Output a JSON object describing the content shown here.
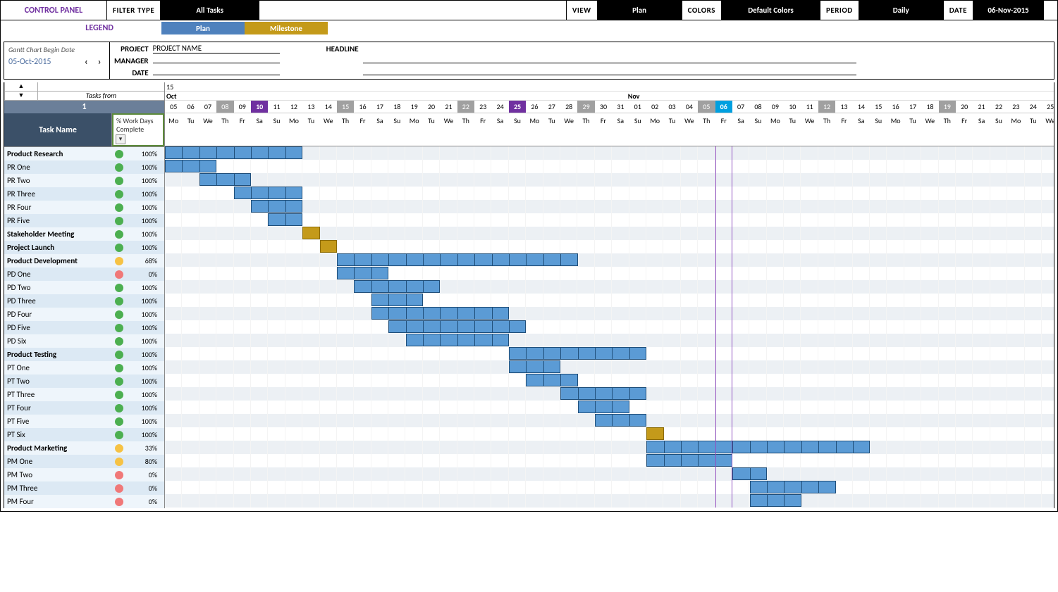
{
  "control_panel": {
    "title": "CONTROL PANEL",
    "filter_type_label": "FILTER TYPE",
    "filter_type_value": "All Tasks",
    "view_label": "VIEW",
    "view_value": "Plan",
    "colors_label": "COLORS",
    "colors_value": "Default Colors",
    "period_label": "PERIOD",
    "period_value": "Daily",
    "date_label": "DATE",
    "date_value": "06-Nov-2015"
  },
  "legend": {
    "label": "LEGEND",
    "plan": "Plan",
    "milestone": "Milestone",
    "plan_color": "#4f81bd",
    "milestone_color": "#c49a1a"
  },
  "meta": {
    "begin_date_label": "Gantt Chart Begin Date",
    "begin_date": "05-Oct-2015",
    "project_label": "PROJECT",
    "project_value": "PROJECT NAME",
    "manager_label": "MANAGER",
    "manager_value": "",
    "date_label": "DATE",
    "date_value": "",
    "headline_label": "HEADLINE",
    "headline_value": ""
  },
  "task_head": {
    "tasks_from": "Tasks from",
    "index": "1",
    "task_name": "Task Name",
    "pct_label": "% Work Days Complete"
  },
  "timeline": {
    "cell_width": 24.4,
    "year": "15",
    "months": [
      {
        "label": "Oct",
        "span": 27
      },
      {
        "label": "Nov",
        "span": 25
      }
    ],
    "today_col": 32,
    "days": [
      {
        "d": "05",
        "w": "Mo"
      },
      {
        "d": "06",
        "w": "Tu"
      },
      {
        "d": "07",
        "w": "We"
      },
      {
        "d": "08",
        "w": "Th",
        "shade": true
      },
      {
        "d": "09",
        "w": "Fr"
      },
      {
        "d": "10",
        "w": "Sa",
        "purple": true
      },
      {
        "d": "11",
        "w": "Su"
      },
      {
        "d": "12",
        "w": "Mo"
      },
      {
        "d": "13",
        "w": "Tu"
      },
      {
        "d": "14",
        "w": "We"
      },
      {
        "d": "15",
        "w": "Th",
        "shade": true
      },
      {
        "d": "16",
        "w": "Fr"
      },
      {
        "d": "17",
        "w": "Sa"
      },
      {
        "d": "18",
        "w": "Su"
      },
      {
        "d": "19",
        "w": "Mo"
      },
      {
        "d": "20",
        "w": "Tu"
      },
      {
        "d": "21",
        "w": "We"
      },
      {
        "d": "22",
        "w": "Th",
        "shade": true
      },
      {
        "d": "23",
        "w": "Fr"
      },
      {
        "d": "24",
        "w": "Sa"
      },
      {
        "d": "25",
        "w": "Su",
        "purple": true
      },
      {
        "d": "26",
        "w": "Mo"
      },
      {
        "d": "27",
        "w": "Tu"
      },
      {
        "d": "28",
        "w": "We"
      },
      {
        "d": "29",
        "w": "Th",
        "shade": true
      },
      {
        "d": "30",
        "w": "Fr"
      },
      {
        "d": "31",
        "w": "Sa"
      },
      {
        "d": "01",
        "w": "Su"
      },
      {
        "d": "02",
        "w": "Mo"
      },
      {
        "d": "03",
        "w": "Tu"
      },
      {
        "d": "04",
        "w": "We"
      },
      {
        "d": "05",
        "w": "Th",
        "shade": true
      },
      {
        "d": "06",
        "w": "Fr",
        "cyan": true
      },
      {
        "d": "07",
        "w": "Sa"
      },
      {
        "d": "08",
        "w": "Su"
      },
      {
        "d": "09",
        "w": "Mo"
      },
      {
        "d": "10",
        "w": "Tu"
      },
      {
        "d": "11",
        "w": "We"
      },
      {
        "d": "12",
        "w": "Th",
        "shade": true
      },
      {
        "d": "13",
        "w": "Fr"
      },
      {
        "d": "14",
        "w": "Sa"
      },
      {
        "d": "15",
        "w": "Su"
      },
      {
        "d": "16",
        "w": "Mo"
      },
      {
        "d": "17",
        "w": "Tu"
      },
      {
        "d": "18",
        "w": "We"
      },
      {
        "d": "19",
        "w": "Th",
        "shade": true
      },
      {
        "d": "20",
        "w": "Fr"
      },
      {
        "d": "21",
        "w": "Sa"
      },
      {
        "d": "22",
        "w": "Su"
      },
      {
        "d": "23",
        "w": "Mo"
      },
      {
        "d": "24",
        "w": "Tu"
      },
      {
        "d": "25",
        "w": "We"
      }
    ]
  },
  "tasks": [
    {
      "name": "Product Research",
      "bold": true,
      "status": "green",
      "pct": "100%",
      "bars": [
        {
          "start": 0,
          "len": 8
        }
      ]
    },
    {
      "name": "PR One",
      "status": "green",
      "pct": "100%",
      "bars": [
        {
          "start": 0,
          "len": 3
        }
      ]
    },
    {
      "name": "PR Two",
      "status": "green",
      "pct": "100%",
      "bars": [
        {
          "start": 2,
          "len": 3
        }
      ]
    },
    {
      "name": "PR Three",
      "status": "green",
      "pct": "100%",
      "bars": [
        {
          "start": 4,
          "len": 4
        }
      ]
    },
    {
      "name": "PR Four",
      "status": "green",
      "pct": "100%",
      "bars": [
        {
          "start": 5,
          "len": 3
        }
      ]
    },
    {
      "name": "PR Five",
      "status": "green",
      "pct": "100%",
      "bars": [
        {
          "start": 6,
          "len": 2
        }
      ]
    },
    {
      "name": "Stakeholder Meeting",
      "bold": true,
      "status": "green",
      "pct": "100%",
      "bars": [
        {
          "start": 8,
          "len": 1,
          "milestone": true
        }
      ]
    },
    {
      "name": "Project Launch",
      "bold": true,
      "status": "green",
      "pct": "100%",
      "bars": [
        {
          "start": 9,
          "len": 1,
          "milestone": true
        }
      ]
    },
    {
      "name": "Product Development",
      "bold": true,
      "status": "yellow",
      "pct": "68%",
      "bars": [
        {
          "start": 10,
          "len": 14
        }
      ]
    },
    {
      "name": "PD One",
      "status": "red",
      "pct": "0%",
      "bars": [
        {
          "start": 10,
          "len": 3
        }
      ]
    },
    {
      "name": "PD Two",
      "status": "green",
      "pct": "100%",
      "bars": [
        {
          "start": 11,
          "len": 5
        }
      ]
    },
    {
      "name": "PD Three",
      "status": "green",
      "pct": "100%",
      "bars": [
        {
          "start": 12,
          "len": 3
        }
      ]
    },
    {
      "name": "PD Four",
      "status": "green",
      "pct": "100%",
      "bars": [
        {
          "start": 12,
          "len": 8
        }
      ]
    },
    {
      "name": "PD Five",
      "status": "green",
      "pct": "100%",
      "bars": [
        {
          "start": 13,
          "len": 8
        }
      ]
    },
    {
      "name": "PD Six",
      "status": "green",
      "pct": "100%",
      "bars": [
        {
          "start": 14,
          "len": 6
        }
      ]
    },
    {
      "name": "Product Testing",
      "bold": true,
      "status": "green",
      "pct": "100%",
      "bars": [
        {
          "start": 20,
          "len": 8
        }
      ]
    },
    {
      "name": "PT One",
      "status": "green",
      "pct": "100%",
      "bars": [
        {
          "start": 20,
          "len": 3
        }
      ]
    },
    {
      "name": "PT Two",
      "status": "green",
      "pct": "100%",
      "bars": [
        {
          "start": 21,
          "len": 3
        }
      ]
    },
    {
      "name": "PT Three",
      "status": "green",
      "pct": "100%",
      "bars": [
        {
          "start": 23,
          "len": 5
        }
      ]
    },
    {
      "name": "PT Four",
      "status": "green",
      "pct": "100%",
      "bars": [
        {
          "start": 24,
          "len": 3
        }
      ]
    },
    {
      "name": "PT Five",
      "status": "green",
      "pct": "100%",
      "bars": [
        {
          "start": 25,
          "len": 3
        }
      ]
    },
    {
      "name": "PT Six",
      "status": "green",
      "pct": "100%",
      "bars": [
        {
          "start": 28,
          "len": 1,
          "milestone": true
        }
      ]
    },
    {
      "name": "Product Marketing",
      "bold": true,
      "status": "yellow",
      "pct": "33%",
      "bars": [
        {
          "start": 28,
          "len": 13
        }
      ]
    },
    {
      "name": "PM One",
      "status": "yellow",
      "pct": "80%",
      "bars": [
        {
          "start": 28,
          "len": 5
        }
      ]
    },
    {
      "name": "PM Two",
      "status": "red",
      "pct": "0%",
      "bars": [
        {
          "start": 33,
          "len": 2
        }
      ]
    },
    {
      "name": "PM Three",
      "status": "red",
      "pct": "0%",
      "bars": [
        {
          "start": 34,
          "len": 5
        }
      ]
    },
    {
      "name": "PM Four",
      "status": "red",
      "pct": "0%",
      "bars": [
        {
          "start": 34,
          "len": 3
        }
      ]
    }
  ],
  "colors": {
    "bar": "#5b9bd5",
    "bar_border": "#1f4e79",
    "milestone": "#c49a1a",
    "row_even": "#ecf0f4",
    "row_odd": "#ffffff",
    "task_even": "#dce9f4",
    "task_odd": "#eef5fb",
    "task_header": "#3b5068",
    "index_header": "#6b7f99"
  }
}
